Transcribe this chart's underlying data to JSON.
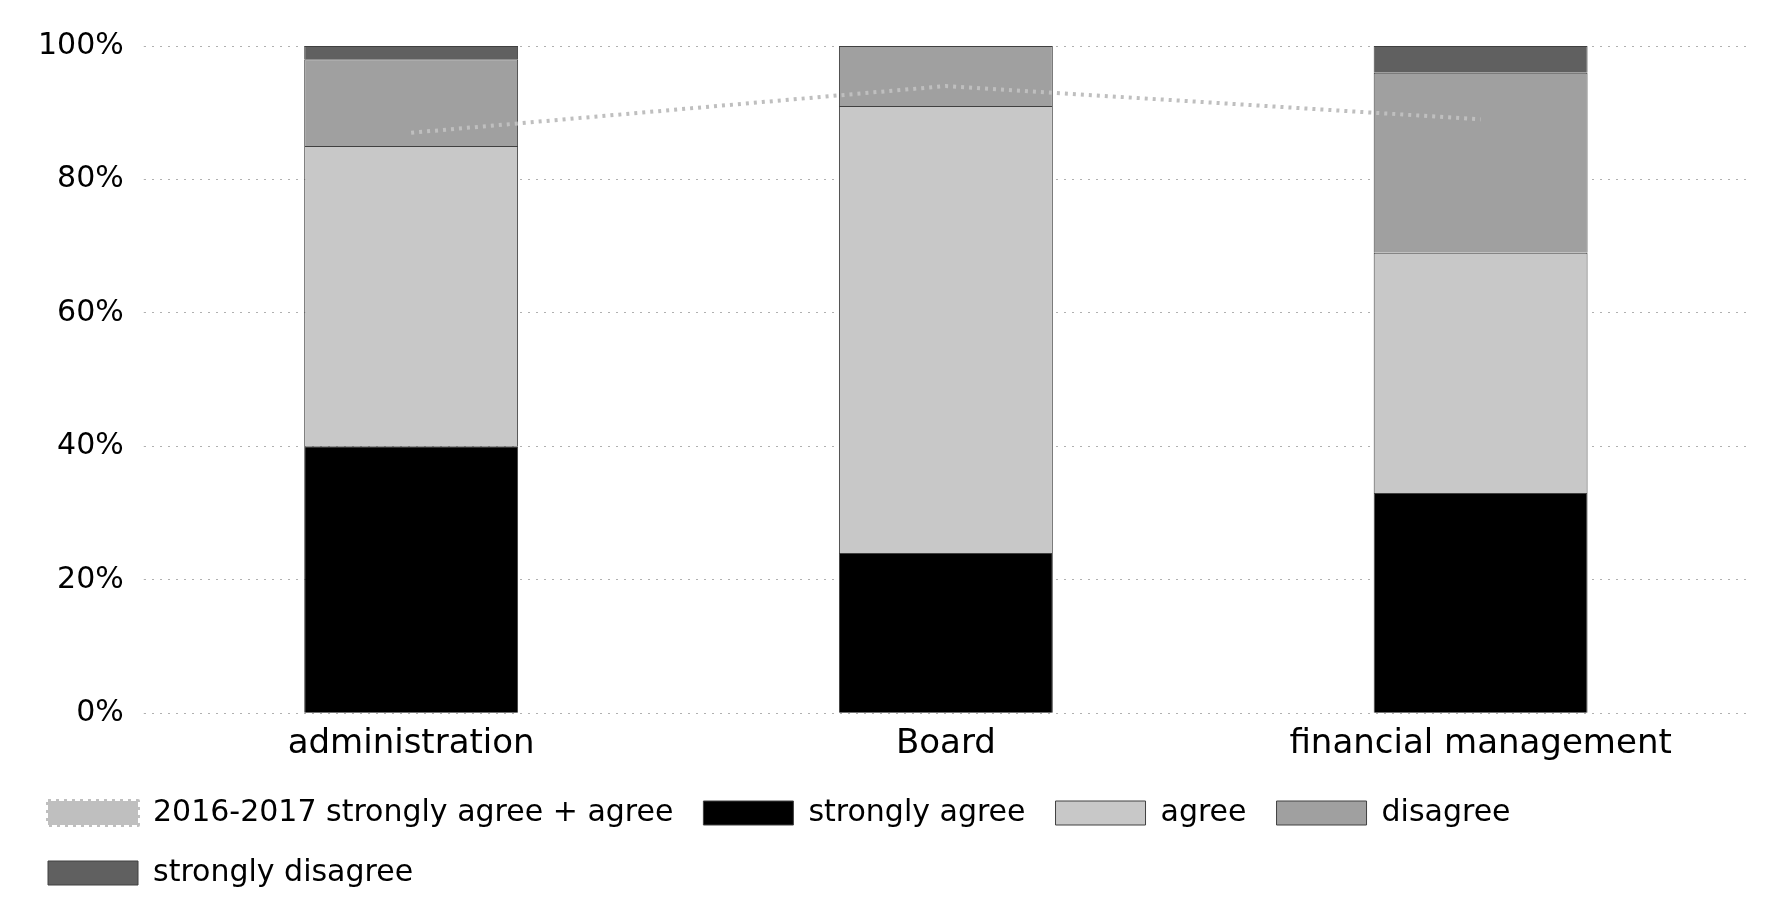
{
  "chart_data": {
    "type": "bar",
    "stacked": true,
    "categories": [
      "administration",
      "Board",
      "financial management"
    ],
    "series": [
      {
        "name": "strongly agree",
        "color": "#000000",
        "values": [
          40,
          24,
          33
        ]
      },
      {
        "name": "agree",
        "color": "#c8c8c8",
        "values": [
          45,
          67,
          36
        ]
      },
      {
        "name": "disagree",
        "color": "#a0a0a0",
        "values": [
          13,
          9,
          27
        ]
      },
      {
        "name": "strongly disagree",
        "color": "#606060",
        "values": [
          2,
          0,
          4
        ]
      },
      {
        "name": "2016-2017 strongly agree + agree",
        "type": "line",
        "color": "#bfbfbf",
        "line_style": "dotted",
        "marker": "none",
        "values": [
          87,
          94,
          89
        ]
      }
    ],
    "ylim": [
      0,
      100
    ],
    "yticks": [
      {
        "value": 0,
        "label": "0%"
      },
      {
        "value": 20,
        "label": "20%"
      },
      {
        "value": 40,
        "label": "40%"
      },
      {
        "value": 60,
        "label": "60%"
      },
      {
        "value": 80,
        "label": "80%"
      },
      {
        "value": 100,
        "label": "100%"
      }
    ],
    "grid": "y",
    "legend": "bottom"
  }
}
